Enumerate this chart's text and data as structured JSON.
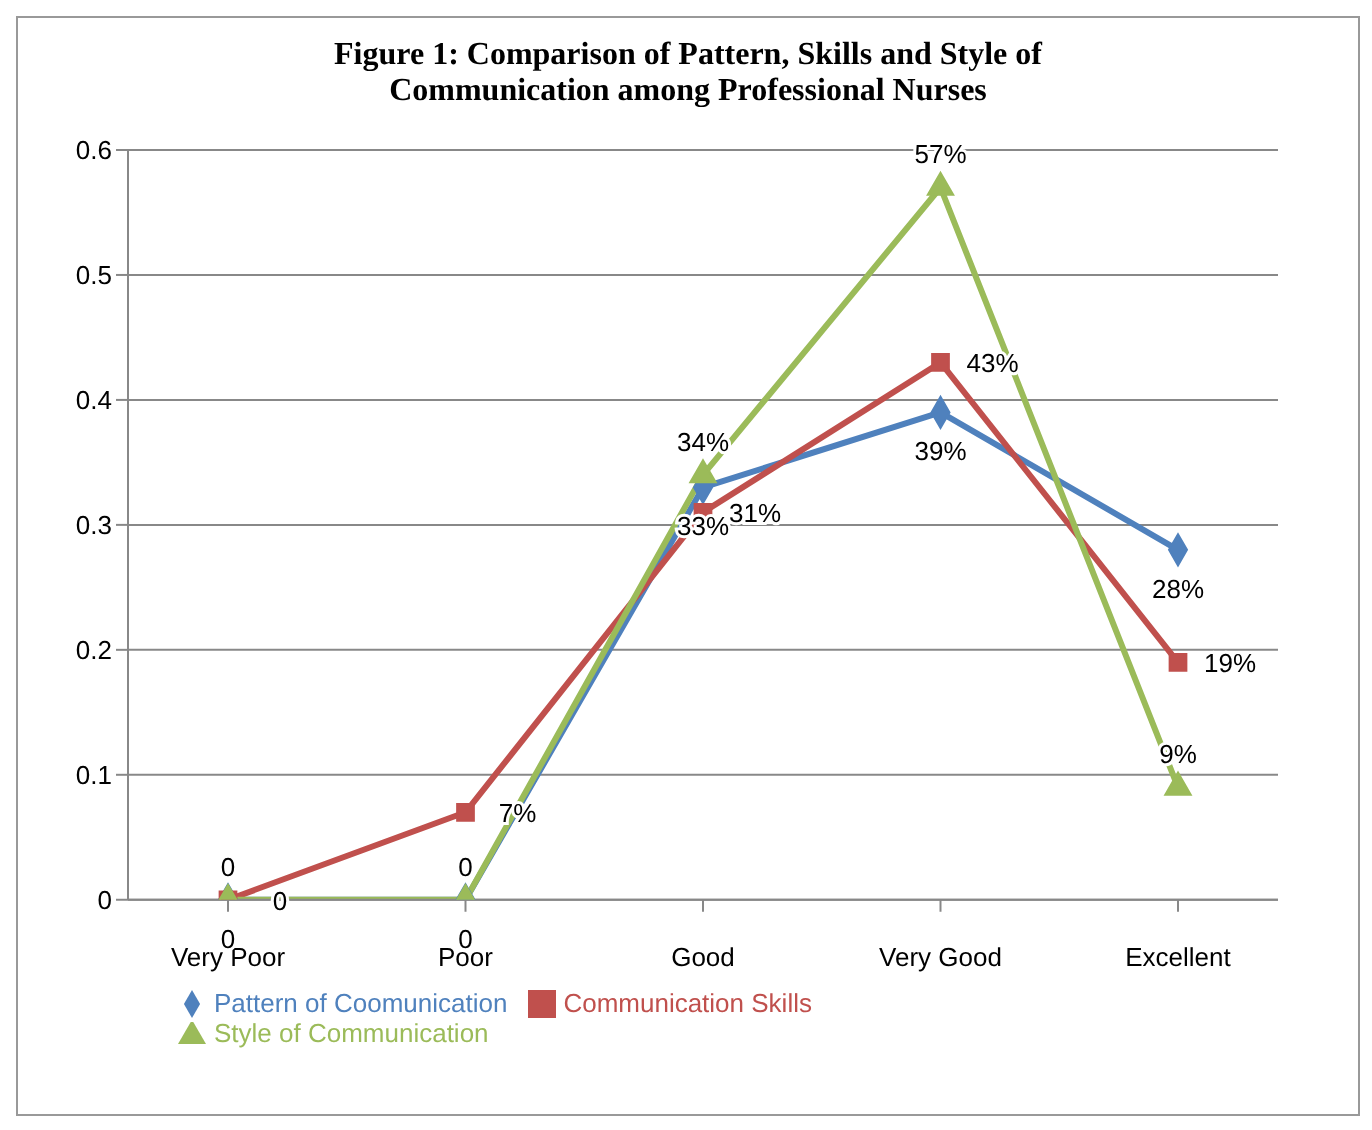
{
  "chart_data": {
    "type": "line",
    "title": "Figure 1: Comparison of Pattern, Skills and Style of Communication among Professional Nurses",
    "categories": [
      "Very Poor",
      "Poor",
      "Good",
      "Very Good",
      "Excellent"
    ],
    "series": [
      {
        "name": "Pattern of Coomunication",
        "color": "#4f81bd",
        "marker": "diamond",
        "values": [
          0,
          0,
          0.33,
          0.39,
          0.28
        ],
        "value_labels": [
          "0",
          "0",
          "33%",
          "39%",
          "28%"
        ]
      },
      {
        "name": "Communication Skills",
        "color": "#c0504d",
        "marker": "square",
        "values": [
          0,
          0.07,
          0.31,
          0.43,
          0.19
        ],
        "value_labels": [
          "0",
          "7%",
          "31%",
          "43%",
          "19%"
        ]
      },
      {
        "name": "Style of Communication",
        "color": "#9bbb59",
        "marker": "triangle",
        "values": [
          0,
          0,
          0.34,
          0.57,
          0.09
        ],
        "value_labels": [
          "0",
          "0",
          "34%",
          "57%",
          "9%"
        ]
      }
    ],
    "ylim": [
      0,
      0.6
    ],
    "yticks": [
      0,
      0.1,
      0.2,
      0.3,
      0.4,
      0.5,
      0.6
    ],
    "grid": "y",
    "legend": "bottom"
  }
}
